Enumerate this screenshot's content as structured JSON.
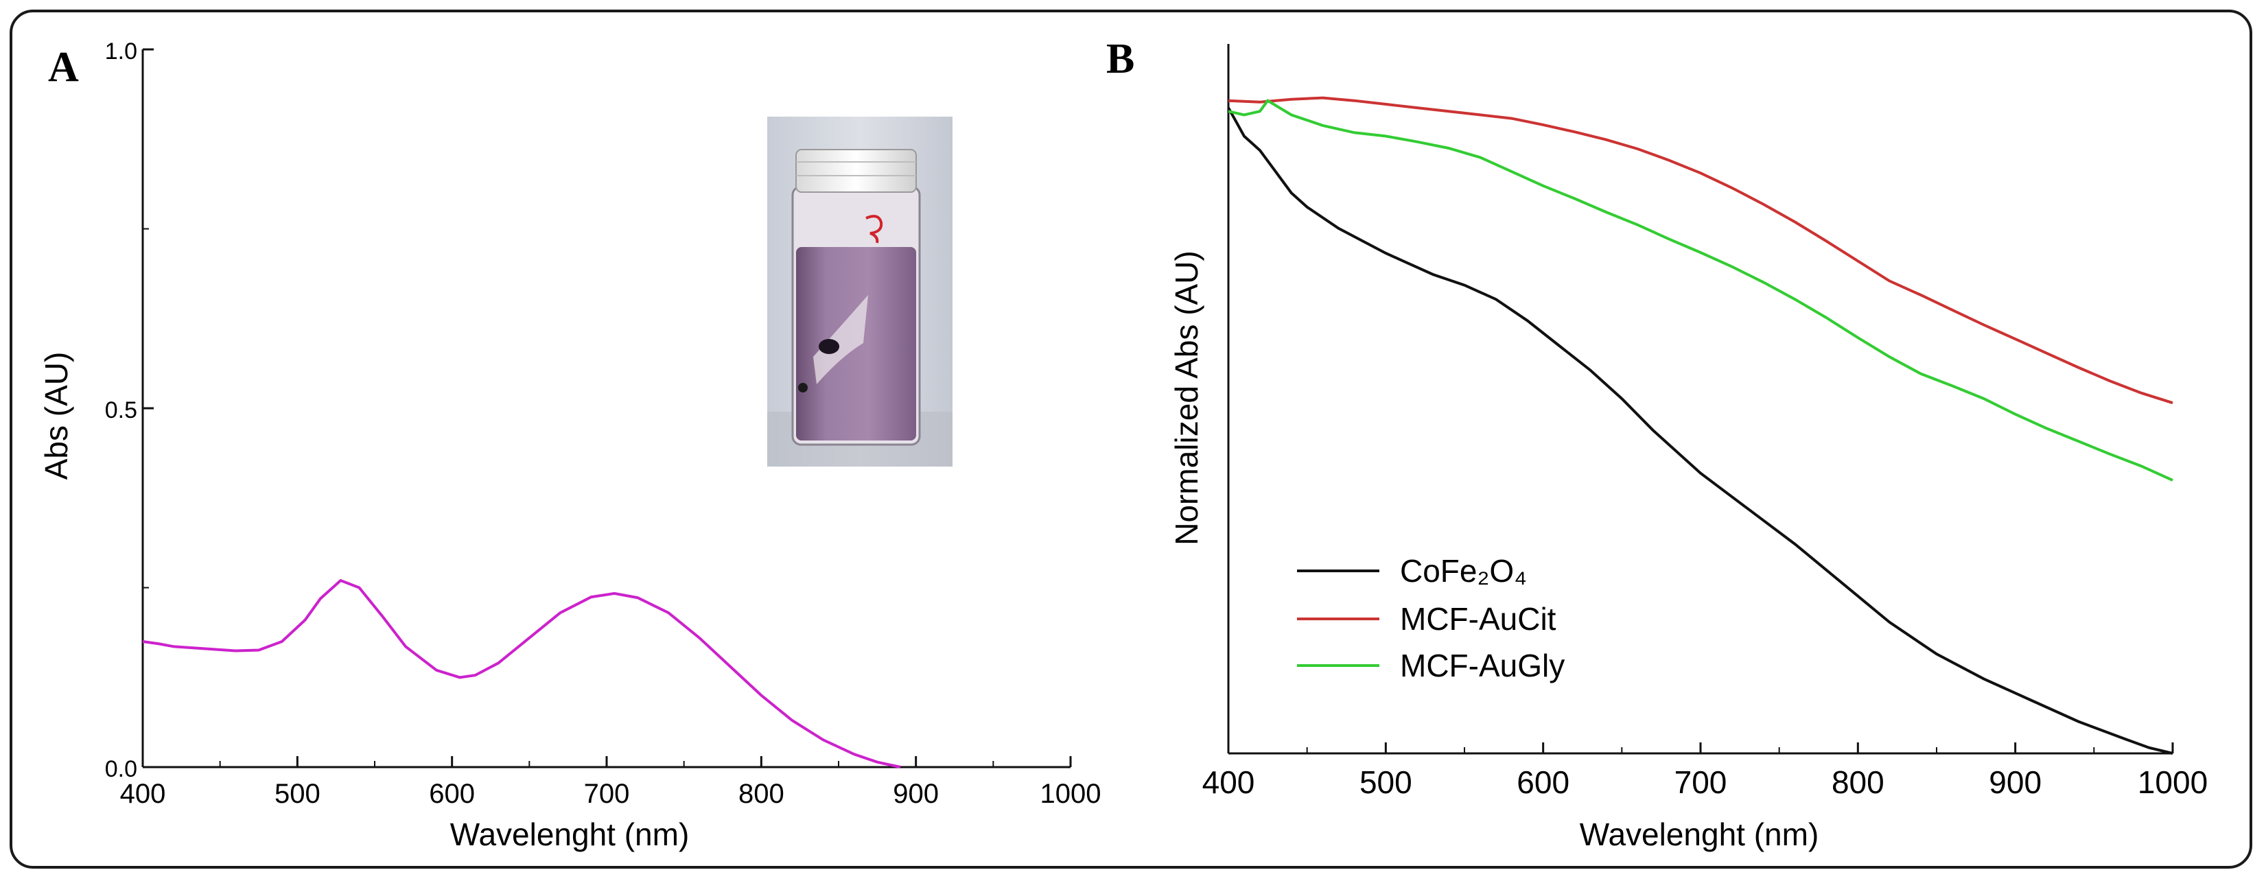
{
  "colors": {
    "spectrum": "#cc22cc",
    "cofe2o4": "#111111",
    "aucit": "#cc3333",
    "augly": "#33cc33",
    "axis": "#111111"
  },
  "chart_data": [
    {
      "panel_label": "A",
      "type": "line",
      "xlabel": "Wavelenght (nm)",
      "ylabel": "Abs (AU)",
      "xlim": [
        400,
        1000
      ],
      "ylim": [
        0,
        1.0
      ],
      "xticks": [
        "400",
        "500",
        "600",
        "700",
        "800",
        "900",
        "1000"
      ],
      "yticks": [
        "0.0",
        "0.5",
        "1.0"
      ],
      "inset": "photo of vial with purple solution",
      "series": [
        {
          "x": [
            400,
            410,
            420,
            440,
            460,
            475,
            490,
            505,
            515,
            528,
            540,
            555,
            570,
            590,
            605,
            615,
            630,
            650,
            670,
            690,
            705,
            720,
            740,
            760,
            780,
            800,
            820,
            840,
            860,
            875,
            890
          ],
          "values": [
            0.175,
            0.172,
            0.168,
            0.165,
            0.162,
            0.163,
            0.175,
            0.205,
            0.235,
            0.26,
            0.25,
            0.21,
            0.168,
            0.135,
            0.125,
            0.128,
            0.145,
            0.18,
            0.215,
            0.237,
            0.242,
            0.236,
            0.215,
            0.18,
            0.14,
            0.1,
            0.065,
            0.038,
            0.018,
            0.007,
            0.0
          ]
        }
      ]
    },
    {
      "panel_label": "B",
      "type": "line",
      "xlabel": "Wavelenght (nm)",
      "ylabel": "Normalized Abs (AU)",
      "xlim": [
        400,
        1000
      ],
      "ylim": [
        0,
        1.0
      ],
      "xticks": [
        "400",
        "500",
        "600",
        "700",
        "800",
        "900",
        "1000"
      ],
      "legend_placement": "bottom-left",
      "series": [
        {
          "name": "CoFe₂O₄",
          "x": [
            400,
            405,
            410,
            420,
            430,
            440,
            450,
            470,
            500,
            530,
            550,
            570,
            590,
            610,
            630,
            650,
            670,
            700,
            730,
            760,
            790,
            820,
            850,
            880,
            910,
            940,
            970,
            985,
            1000
          ],
          "values": [
            0.91,
            0.89,
            0.87,
            0.85,
            0.82,
            0.79,
            0.77,
            0.74,
            0.705,
            0.675,
            0.66,
            0.64,
            0.61,
            0.575,
            0.54,
            0.5,
            0.455,
            0.395,
            0.345,
            0.295,
            0.24,
            0.185,
            0.14,
            0.105,
            0.075,
            0.045,
            0.02,
            0.008,
            0.0
          ]
        },
        {
          "name": "MCF-AuCit",
          "x": [
            400,
            420,
            440,
            460,
            480,
            500,
            520,
            540,
            560,
            580,
            600,
            620,
            640,
            660,
            680,
            700,
            720,
            740,
            760,
            780,
            800,
            820,
            840,
            860,
            880,
            900,
            920,
            940,
            960,
            980,
            1000
          ],
          "values": [
            0.92,
            0.918,
            0.922,
            0.924,
            0.92,
            0.915,
            0.91,
            0.905,
            0.9,
            0.895,
            0.886,
            0.876,
            0.865,
            0.852,
            0.836,
            0.818,
            0.797,
            0.774,
            0.749,
            0.722,
            0.694,
            0.666,
            0.646,
            0.625,
            0.604,
            0.584,
            0.564,
            0.544,
            0.525,
            0.508,
            0.494
          ]
        },
        {
          "name": "MCF-AuGly",
          "x": [
            400,
            410,
            420,
            425,
            440,
            460,
            480,
            500,
            520,
            540,
            560,
            580,
            600,
            620,
            640,
            660,
            680,
            700,
            720,
            740,
            760,
            780,
            800,
            820,
            840,
            860,
            880,
            900,
            920,
            940,
            960,
            980,
            1000
          ],
          "values": [
            0.905,
            0.9,
            0.905,
            0.92,
            0.9,
            0.885,
            0.875,
            0.87,
            0.862,
            0.853,
            0.84,
            0.82,
            0.8,
            0.782,
            0.763,
            0.745,
            0.725,
            0.706,
            0.686,
            0.664,
            0.64,
            0.614,
            0.586,
            0.559,
            0.535,
            0.518,
            0.5,
            0.478,
            0.458,
            0.44,
            0.422,
            0.405,
            0.385
          ]
        }
      ]
    }
  ]
}
